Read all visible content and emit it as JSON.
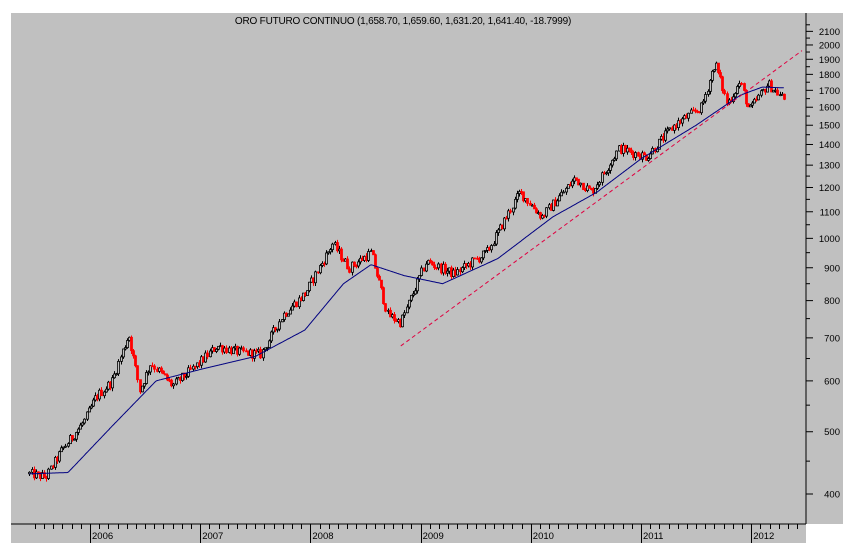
{
  "chart_data": {
    "type": "candlestick",
    "title": "ORO FUTURO CONTINUO (1,658.70, 1,659.60, 1,631.20, 1,641.40, -18.7999)",
    "instrument": "ORO FUTURO CONTINUO",
    "last_bar": {
      "open": 1658.7,
      "high": 1659.6,
      "low": 1631.2,
      "close": 1641.4,
      "change": -18.7999
    },
    "xlabel": "",
    "ylabel": "",
    "y_scale": "log",
    "ylim": [
      370,
      2200
    ],
    "y_ticks": [
      400,
      500,
      600,
      700,
      800,
      900,
      1000,
      1100,
      1200,
      1300,
      1400,
      1500,
      1600,
      1700,
      1800,
      1900,
      2000,
      2100
    ],
    "x_ticks": [
      "2006",
      "2007",
      "2008",
      "2009",
      "2010",
      "2011",
      "2012"
    ],
    "x_range": [
      "2005-06",
      "2012-04"
    ],
    "grid": false,
    "legend": null,
    "series": [
      {
        "name": "Price (weekly bars, black = up, red = down)",
        "approx_path": [
          {
            "date": "2005.45",
            "price": 430
          },
          {
            "date": "2005.6",
            "price": 425
          },
          {
            "date": "2005.75",
            "price": 470
          },
          {
            "date": "2005.95",
            "price": 520
          },
          {
            "date": "2006.05",
            "price": 565
          },
          {
            "date": "2006.2",
            "price": 600
          },
          {
            "date": "2006.35",
            "price": 710
          },
          {
            "date": "2006.45",
            "price": 580
          },
          {
            "date": "2006.55",
            "price": 640
          },
          {
            "date": "2006.75",
            "price": 590
          },
          {
            "date": "2006.95",
            "price": 630
          },
          {
            "date": "2007.15",
            "price": 680
          },
          {
            "date": "2007.35",
            "price": 665
          },
          {
            "date": "2007.55",
            "price": 660
          },
          {
            "date": "2007.75",
            "price": 760
          },
          {
            "date": "2007.95",
            "price": 820
          },
          {
            "date": "2008.2",
            "price": 980
          },
          {
            "date": "2008.35",
            "price": 900
          },
          {
            "date": "2008.55",
            "price": 950
          },
          {
            "date": "2008.7",
            "price": 760
          },
          {
            "date": "2008.82",
            "price": 740
          },
          {
            "date": "2009.05",
            "price": 920
          },
          {
            "date": "2009.3",
            "price": 880
          },
          {
            "date": "2009.6",
            "price": 950
          },
          {
            "date": "2009.9",
            "price": 1180
          },
          {
            "date": "2010.1",
            "price": 1080
          },
          {
            "date": "2010.4",
            "price": 1240
          },
          {
            "date": "2010.55",
            "price": 1180
          },
          {
            "date": "2010.8",
            "price": 1380
          },
          {
            "date": "2011.05",
            "price": 1340
          },
          {
            "date": "2011.3",
            "price": 1500
          },
          {
            "date": "2011.55",
            "price": 1600
          },
          {
            "date": "2011.67",
            "price": 1880
          },
          {
            "date": "2011.78",
            "price": 1620
          },
          {
            "date": "2011.9",
            "price": 1750
          },
          {
            "date": "2011.98",
            "price": 1580
          },
          {
            "date": "2012.15",
            "price": 1740
          },
          {
            "date": "2012.3",
            "price": 1645
          }
        ]
      },
      {
        "name": "Moving average (blue)",
        "color": "#000080",
        "approx_path": [
          {
            "date": "2005.45",
            "price": 430
          },
          {
            "date": "2005.8",
            "price": 432
          },
          {
            "date": "2006.2",
            "price": 510
          },
          {
            "date": "2006.6",
            "price": 600
          },
          {
            "date": "2007.0",
            "price": 625
          },
          {
            "date": "2007.5",
            "price": 655
          },
          {
            "date": "2007.95",
            "price": 720
          },
          {
            "date": "2008.3",
            "price": 850
          },
          {
            "date": "2008.55",
            "price": 910
          },
          {
            "date": "2008.85",
            "price": 875
          },
          {
            "date": "2009.2",
            "price": 850
          },
          {
            "date": "2009.7",
            "price": 930
          },
          {
            "date": "2010.2",
            "price": 1080
          },
          {
            "date": "2010.6",
            "price": 1180
          },
          {
            "date": "2011.0",
            "price": 1330
          },
          {
            "date": "2011.5",
            "price": 1500
          },
          {
            "date": "2011.9",
            "price": 1670
          },
          {
            "date": "2012.1",
            "price": 1720
          },
          {
            "date": "2012.3",
            "price": 1715
          }
        ]
      },
      {
        "name": "Trend line (red dashed)",
        "color": "#e00040",
        "points": [
          {
            "date": "2008.82",
            "price": 680
          },
          {
            "date": "2012.5",
            "price": 1960
          }
        ]
      }
    ]
  },
  "axis": {
    "y_labels": [
      "2100",
      "2000",
      "1900",
      "1800",
      "1700",
      "1600",
      "1500",
      "1400",
      "1300",
      "1200",
      "1100",
      "1000",
      "900",
      "800",
      "700",
      "600",
      "500",
      "400"
    ],
    "x_labels": [
      "2006",
      "2007",
      "2008",
      "2009",
      "2010",
      "2011",
      "2012"
    ]
  },
  "colors": {
    "background": "#c0c0c0",
    "up_bar": "#000000",
    "down_bar": "#ff0000",
    "moving_average": "#000080",
    "trend_line": "#e00040"
  }
}
